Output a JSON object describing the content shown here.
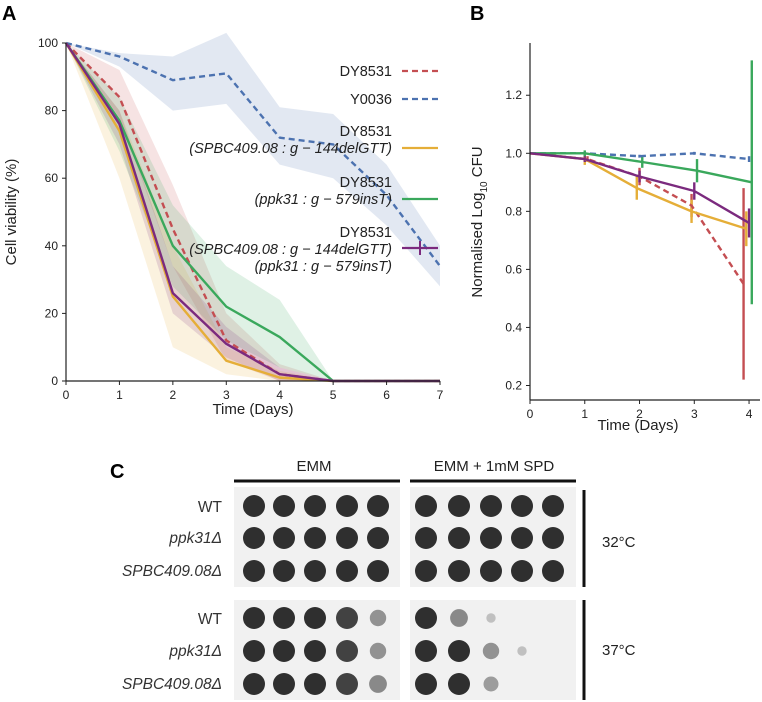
{
  "chart_data": [
    {
      "panel": "A",
      "type": "line",
      "xlabel": "Time (Days)",
      "ylabel": "Cell viability (%)",
      "xlim": [
        0,
        7
      ],
      "ylim": [
        0,
        100
      ],
      "xticks": [
        0,
        1,
        2,
        3,
        4,
        5,
        6,
        7
      ],
      "yticks": [
        0,
        20,
        40,
        60,
        80,
        100
      ],
      "series": [
        {
          "key": "dy8531",
          "name": "DY8531",
          "color": "#c44e52",
          "dash": true,
          "x": [
            0,
            1,
            2,
            3,
            4,
            5,
            6,
            7
          ],
          "y": [
            100,
            84,
            45,
            12,
            2,
            0,
            0,
            0
          ],
          "band_lo": [
            100,
            78,
            34,
            6,
            0,
            0,
            0,
            0
          ],
          "band_hi": [
            100,
            92,
            58,
            20,
            5,
            0,
            0,
            0
          ]
        },
        {
          "key": "y0036",
          "name": "Y0036",
          "color": "#4c72b0",
          "dash": true,
          "x": [
            0,
            1,
            2,
            3,
            4,
            5,
            6,
            7
          ],
          "y": [
            100,
            96,
            89,
            91,
            72,
            70,
            55,
            34
          ],
          "band_lo": [
            100,
            93,
            80,
            82,
            64,
            60,
            46,
            28
          ],
          "band_hi": [
            100,
            97,
            96,
            103,
            81,
            79,
            64,
            40
          ]
        },
        {
          "key": "spbc",
          "name": "DY8531 (SPBC409.08 : g - 144delGTT)",
          "color": "#e5ae38",
          "dash": false,
          "x": [
            0,
            1,
            2,
            3,
            4,
            5,
            6,
            7
          ],
          "y": [
            100,
            74,
            25,
            6,
            1,
            0,
            0,
            0
          ],
          "band_lo": [
            100,
            60,
            10,
            2,
            0,
            0,
            0,
            0
          ],
          "band_hi": [
            100,
            80,
            40,
            10,
            3,
            0,
            0,
            0
          ]
        },
        {
          "key": "ppk31",
          "name": "DY8531 (ppk31 : g - 579insT)",
          "color": "#3aa85c",
          "dash": false,
          "x": [
            0,
            1,
            2,
            3,
            4,
            5,
            6,
            7
          ],
          "y": [
            100,
            77,
            40,
            22,
            13,
            0,
            0,
            0
          ],
          "band_lo": [
            100,
            68,
            28,
            12,
            4,
            0,
            0,
            0
          ],
          "band_hi": [
            100,
            84,
            52,
            34,
            24,
            0,
            0,
            0
          ]
        },
        {
          "key": "double",
          "name": "DY8531 (SPBC409.08 : g - 144delGTT) (ppk31 : g - 579insT)",
          "color": "#7b2a7e",
          "dash": false,
          "x": [
            0,
            1,
            2,
            3,
            4,
            5,
            6,
            7
          ],
          "y": [
            100,
            76,
            26,
            11,
            2,
            0,
            0,
            0
          ],
          "band_lo": [
            100,
            70,
            20,
            7,
            0,
            0,
            0,
            0
          ],
          "band_hi": [
            100,
            80,
            34,
            16,
            4,
            0,
            0,
            0
          ]
        }
      ]
    },
    {
      "panel": "B",
      "type": "line",
      "xlabel": "Time (Days)",
      "ylabel": "Normalised Log10 CFU",
      "ylabel_base": "Normalised Log",
      "ylabel_sub": "10",
      "ylabel_tail": " CFU",
      "xlim": [
        0,
        4.2
      ],
      "ylim": [
        0.15,
        1.38
      ],
      "xticks": [
        0,
        1,
        2,
        3,
        4
      ],
      "yticks": [
        0.2,
        0.4,
        0.6,
        0.8,
        1.0,
        1.2
      ],
      "ytick_labels": [
        "0.2",
        "0.4",
        "0.6",
        "0.8",
        "1.0",
        "1.2"
      ],
      "series": [
        {
          "key": "dy8531",
          "color": "#c44e52",
          "dash": true,
          "x": [
            0,
            1.05,
            2.0,
            2.95,
            3.9
          ],
          "y": [
            1.0,
            0.98,
            0.92,
            0.82,
            0.55
          ],
          "err": [
            0,
            0.01,
            0.03,
            0.04,
            0.33
          ]
        },
        {
          "key": "y0036",
          "color": "#4c72b0",
          "dash": true,
          "x": [
            0,
            1.0,
            2.0,
            3.0,
            4.0
          ],
          "y": [
            1.0,
            1.0,
            0.99,
            1.0,
            0.98
          ],
          "err": [
            0,
            0.005,
            0.005,
            0.005,
            0.01
          ]
        },
        {
          "key": "spbc",
          "color": "#e5ae38",
          "dash": false,
          "x": [
            0,
            1.0,
            1.95,
            2.95,
            3.95
          ],
          "y": [
            1.0,
            0.98,
            0.88,
            0.8,
            0.74
          ],
          "err": [
            0,
            0.02,
            0.04,
            0.04,
            0.06
          ]
        },
        {
          "key": "ppk31",
          "color": "#3aa85c",
          "dash": false,
          "x": [
            0,
            1.0,
            2.05,
            3.05,
            4.05
          ],
          "y": [
            1.0,
            1.0,
            0.97,
            0.94,
            0.9
          ],
          "err": [
            0,
            0.01,
            0.02,
            0.04,
            0.42
          ]
        },
        {
          "key": "double",
          "color": "#7b2a7e",
          "dash": false,
          "x": [
            0,
            1.0,
            2.0,
            3.0,
            4.0
          ],
          "y": [
            1.0,
            0.98,
            0.92,
            0.87,
            0.76
          ],
          "err": [
            0,
            0.01,
            0.02,
            0.03,
            0.05
          ]
        }
      ]
    }
  ],
  "panel_labels": {
    "a": "A",
    "b": "B",
    "c": "C"
  },
  "legend": {
    "dy8531": "DY8531",
    "y0036": "Y0036",
    "spbc_1": "DY8531",
    "spbc_2": "(SPBC409.08 : g − 144delGTT)",
    "ppk_1": "DY8531",
    "ppk_2": "(ppk31 : g − 579insT)",
    "dbl_1": "DY8531",
    "dbl_2": "(SPBC409.08 : g − 144delGTT)",
    "dbl_3": "(ppk31 : g − 579insT)"
  },
  "spot_assay": {
    "conditions": [
      "EMM",
      "EMM + 1mM SPD"
    ],
    "strains": [
      "WT",
      "ppk31Δ",
      "SPBC409.08Δ"
    ],
    "temperatures": [
      "32°C",
      "37°C"
    ],
    "growth_32": [
      [
        1,
        1,
        1,
        1,
        1
      ],
      [
        1,
        1,
        1,
        1,
        1
      ],
      [
        1,
        1,
        1,
        1,
        1
      ]
    ],
    "growth_32_spd": [
      [
        1,
        1,
        1,
        1,
        1
      ],
      [
        1,
        1,
        1,
        1,
        1
      ],
      [
        1,
        1,
        1,
        1,
        1
      ]
    ],
    "growth_37": [
      [
        1,
        1,
        1,
        0.9,
        0.6
      ],
      [
        1,
        1,
        1,
        0.9,
        0.6
      ],
      [
        1,
        1,
        1,
        0.9,
        0.7
      ]
    ],
    "growth_37_spd": [
      [
        1,
        0.7,
        0.1,
        0,
        0
      ],
      [
        1,
        1,
        0.6,
        0.1,
        0
      ],
      [
        1,
        1,
        0.5,
        0,
        0
      ]
    ]
  }
}
